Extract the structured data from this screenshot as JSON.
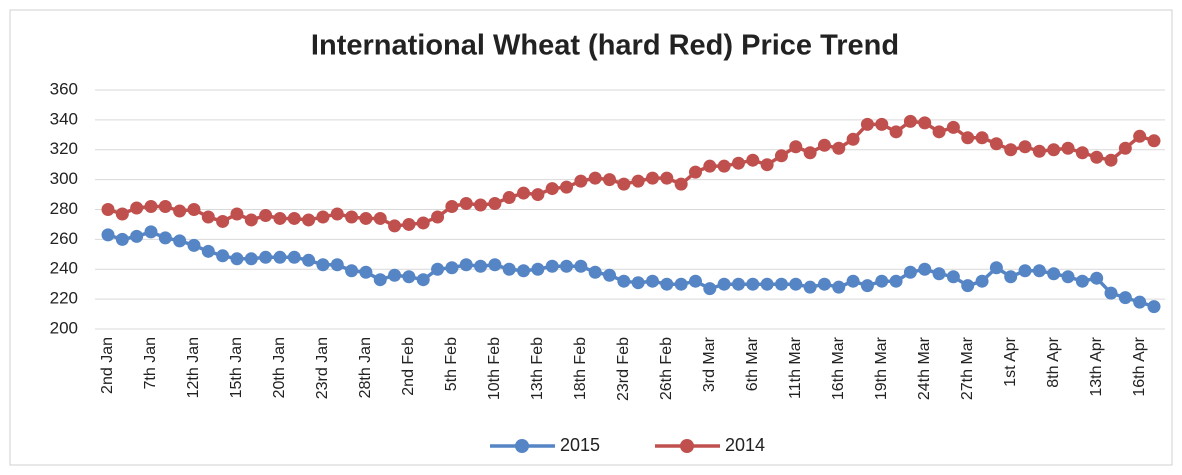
{
  "chart_data": {
    "type": "line",
    "title": "International Wheat (hard Red) Price Trend",
    "categories": [
      "2nd Jan",
      null,
      null,
      "7th Jan",
      null,
      null,
      "12th Jan",
      null,
      null,
      "15th Jan",
      null,
      null,
      "20th Jan",
      null,
      null,
      "23rd Jan",
      null,
      null,
      "28th Jan",
      null,
      null,
      "2nd Feb",
      null,
      null,
      "5th Feb",
      null,
      null,
      "10th Feb",
      null,
      null,
      "13th Feb",
      null,
      null,
      "18th Feb",
      null,
      null,
      "23rd Feb",
      null,
      null,
      "26th Feb",
      null,
      null,
      "3rd Mar",
      null,
      null,
      "6th Mar",
      null,
      null,
      "11th Mar",
      null,
      null,
      "16th Mar",
      null,
      null,
      "19th Mar",
      null,
      null,
      "24th Mar",
      null,
      null,
      "27th Mar",
      null,
      null,
      "1st Apr",
      null,
      null,
      "8th Apr",
      null,
      null,
      "13th Apr",
      null,
      null,
      "16th Apr",
      null
    ],
    "series": [
      {
        "name": "2015",
        "color": "#5585c5",
        "values": [
          263,
          260,
          262,
          265,
          261,
          259,
          256,
          252,
          249,
          247,
          247,
          248,
          248,
          248,
          246,
          243,
          243,
          239,
          238,
          233,
          236,
          235,
          233,
          240,
          241,
          243,
          242,
          243,
          240,
          239,
          240,
          242,
          242,
          242,
          238,
          236,
          232,
          231,
          232,
          230,
          230,
          232,
          227,
          230,
          230,
          230,
          230,
          230,
          230,
          228,
          230,
          228,
          232,
          229,
          232,
          232,
          238,
          240,
          237,
          235,
          229,
          232,
          241,
          235,
          239,
          239,
          237,
          235,
          232,
          234,
          224,
          221,
          218,
          215
        ]
      },
      {
        "name": "2014",
        "color": "#c0504d",
        "values": [
          280,
          277,
          281,
          282,
          282,
          279,
          280,
          275,
          272,
          277,
          273,
          276,
          274,
          274,
          273,
          275,
          277,
          275,
          274,
          274,
          269,
          270,
          271,
          275,
          282,
          284,
          283,
          284,
          288,
          291,
          290,
          294,
          295,
          299,
          301,
          300,
          297,
          299,
          301,
          301,
          297,
          305,
          309,
          309,
          311,
          313,
          310,
          316,
          322,
          318,
          323,
          321,
          327,
          337,
          337,
          332,
          339,
          338,
          332,
          335,
          328,
          328,
          324,
          320,
          322,
          319,
          320,
          321,
          318,
          315,
          313,
          321,
          329,
          326
        ]
      }
    ],
    "ylim": [
      200,
      360
    ],
    "yticks": [
      200,
      220,
      240,
      260,
      280,
      300,
      320,
      340,
      360
    ],
    "grid": true,
    "legend": "bottom"
  }
}
